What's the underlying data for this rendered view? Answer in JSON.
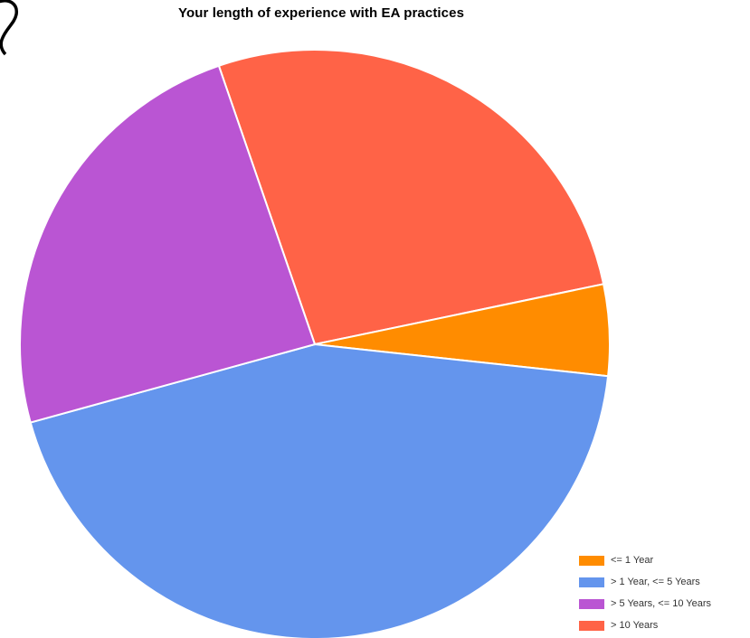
{
  "chart_data": {
    "type": "pie",
    "title": "Your length of experience with EA practices",
    "start_angle_deg": -19,
    "clockwise": true,
    "slices": [
      {
        "label": "> 10 Years",
        "value": 27,
        "color": "#FF6347"
      },
      {
        "label": "<= 1 Year",
        "value": 5,
        "color": "#FF8C00"
      },
      {
        "label": "> 1 Year, <= 5 Years",
        "value": 44,
        "color": "#6495ED"
      },
      {
        "label": "> 5 Years, <= 10 Years",
        "value": 24,
        "color": "#BA55D3"
      }
    ],
    "legend": {
      "position": "bottom-right",
      "items": [
        {
          "label": "<= 1 Year",
          "color": "#FF8C00"
        },
        {
          "label": "> 1 Year, <= 5 Years",
          "color": "#6495ED"
        },
        {
          "label": "> 5 Years, <= 10 Years",
          "color": "#BA55D3"
        },
        {
          "label": "> 10 Years",
          "color": "#FF6347"
        }
      ]
    }
  }
}
